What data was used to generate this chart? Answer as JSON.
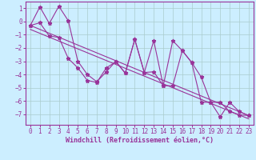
{
  "xlabel": "Windchill (Refroidissement éolien,°C)",
  "background_color": "#cceeff",
  "line_color": "#993399",
  "grid_color": "#aacccc",
  "xlim": [
    -0.5,
    23.5
  ],
  "ylim": [
    -7.8,
    1.5
  ],
  "xticks": [
    0,
    1,
    2,
    3,
    4,
    5,
    6,
    7,
    8,
    9,
    10,
    11,
    12,
    13,
    14,
    15,
    16,
    17,
    18,
    19,
    20,
    21,
    22,
    23
  ],
  "yticks": [
    1,
    0,
    -1,
    -2,
    -3,
    -4,
    -5,
    -6,
    -7
  ],
  "line1_x": [
    0,
    1,
    2,
    3,
    4,
    5,
    6,
    7,
    8,
    9,
    10,
    11,
    12,
    13,
    14,
    15,
    16,
    17,
    18,
    19,
    20,
    21,
    22,
    23
  ],
  "line1_y": [
    -0.3,
    1.1,
    -0.15,
    1.15,
    0.05,
    -3.0,
    -4.0,
    -4.55,
    -3.8,
    -3.0,
    -3.9,
    -1.35,
    -3.85,
    -1.45,
    -4.85,
    -1.45,
    -2.2,
    -3.1,
    -4.2,
    -6.1,
    -7.2,
    -6.1,
    -6.8,
    -7.1
  ],
  "line2_x": [
    0,
    1,
    2,
    3,
    4,
    5,
    6,
    7,
    8,
    9,
    10,
    11,
    12,
    13,
    14,
    15,
    16,
    17,
    18,
    19,
    20,
    21,
    22,
    23
  ],
  "line2_y": [
    -0.3,
    -0.1,
    -1.1,
    -1.2,
    -2.8,
    -3.5,
    -4.45,
    -4.6,
    -3.5,
    -3.05,
    -3.9,
    -1.35,
    -3.85,
    -3.8,
    -4.85,
    -4.85,
    -2.2,
    -3.1,
    -6.1,
    -6.1,
    -6.1,
    -6.8,
    -7.05,
    -7.1
  ],
  "line3_y": [
    -0.3,
    -7.1
  ],
  "line4_y": [
    -0.6,
    -7.35
  ],
  "tick_fontsize": 5.5,
  "xlabel_fontsize": 6.0
}
